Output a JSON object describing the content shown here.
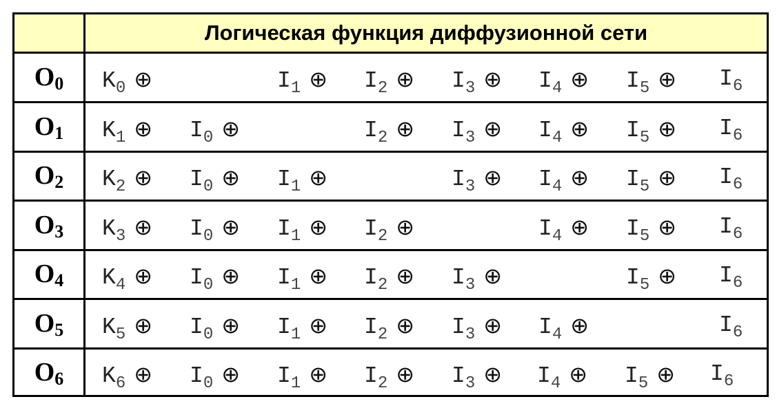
{
  "header": {
    "title": "Логическая функция диффузионной сети"
  },
  "xor_symbol": "⊕",
  "header_color": "#ffffc0",
  "rows": [
    {
      "label": "O",
      "sub": "0",
      "terms": [
        {
          "v": "K",
          "s": "0",
          "x": true
        },
        null,
        {
          "v": "I",
          "s": "1",
          "x": true
        },
        {
          "v": "I",
          "s": "2",
          "x": true
        },
        {
          "v": "I",
          "s": "3",
          "x": true
        },
        {
          "v": "I",
          "s": "4",
          "x": true
        },
        {
          "v": "I",
          "s": "5",
          "x": true
        },
        {
          "v": "I",
          "s": "6",
          "x": false
        }
      ]
    },
    {
      "label": "O",
      "sub": "1",
      "terms": [
        {
          "v": "K",
          "s": "1",
          "x": true
        },
        {
          "v": "I",
          "s": "0",
          "x": true
        },
        null,
        {
          "v": "I",
          "s": "2",
          "x": true
        },
        {
          "v": "I",
          "s": "3",
          "x": true
        },
        {
          "v": "I",
          "s": "4",
          "x": true
        },
        {
          "v": "I",
          "s": "5",
          "x": true
        },
        {
          "v": "I",
          "s": "6",
          "x": false
        }
      ]
    },
    {
      "label": "O",
      "sub": "2",
      "terms": [
        {
          "v": "K",
          "s": "2",
          "x": true
        },
        {
          "v": "I",
          "s": "0",
          "x": true
        },
        {
          "v": "I",
          "s": "1",
          "x": true
        },
        null,
        {
          "v": "I",
          "s": "3",
          "x": true
        },
        {
          "v": "I",
          "s": "4",
          "x": true
        },
        {
          "v": "I",
          "s": "5",
          "x": true
        },
        {
          "v": "I",
          "s": "6",
          "x": false
        }
      ]
    },
    {
      "label": "O",
      "sub": "3",
      "terms": [
        {
          "v": "K",
          "s": "3",
          "x": true
        },
        {
          "v": "I",
          "s": "0",
          "x": true
        },
        {
          "v": "I",
          "s": "1",
          "x": true
        },
        {
          "v": "I",
          "s": "2",
          "x": true
        },
        null,
        {
          "v": "I",
          "s": "4",
          "x": true
        },
        {
          "v": "I",
          "s": "5",
          "x": true
        },
        {
          "v": "I",
          "s": "6",
          "x": false
        }
      ]
    },
    {
      "label": "O",
      "sub": "4",
      "terms": [
        {
          "v": "K",
          "s": "4",
          "x": true
        },
        {
          "v": "I",
          "s": "0",
          "x": true
        },
        {
          "v": "I",
          "s": "1",
          "x": true
        },
        {
          "v": "I",
          "s": "2",
          "x": true
        },
        {
          "v": "I",
          "s": "3",
          "x": true
        },
        null,
        {
          "v": "I",
          "s": "5",
          "x": true
        },
        {
          "v": "I",
          "s": "6",
          "x": false
        }
      ]
    },
    {
      "label": "O",
      "sub": "5",
      "terms": [
        {
          "v": "K",
          "s": "5",
          "x": true
        },
        {
          "v": "I",
          "s": "0",
          "x": true
        },
        {
          "v": "I",
          "s": "1",
          "x": true
        },
        {
          "v": "I",
          "s": "2",
          "x": true
        },
        {
          "v": "I",
          "s": "3",
          "x": true
        },
        {
          "v": "I",
          "s": "4",
          "x": true
        },
        null,
        {
          "v": "I",
          "s": "6",
          "x": false
        }
      ]
    },
    {
      "label": "O",
      "sub": "6",
      "terms": [
        {
          "v": "K",
          "s": "6",
          "x": true
        },
        {
          "v": "I",
          "s": "0",
          "x": true
        },
        {
          "v": "I",
          "s": "1",
          "x": true
        },
        {
          "v": "I",
          "s": "2",
          "x": true
        },
        {
          "v": "I",
          "s": "3",
          "x": true
        },
        {
          "v": "I",
          "s": "4",
          "x": true
        },
        {
          "v": "I",
          "s": "5",
          "x": true
        },
        {
          "v": "I",
          "s": "6",
          "x": false
        }
      ]
    }
  ]
}
